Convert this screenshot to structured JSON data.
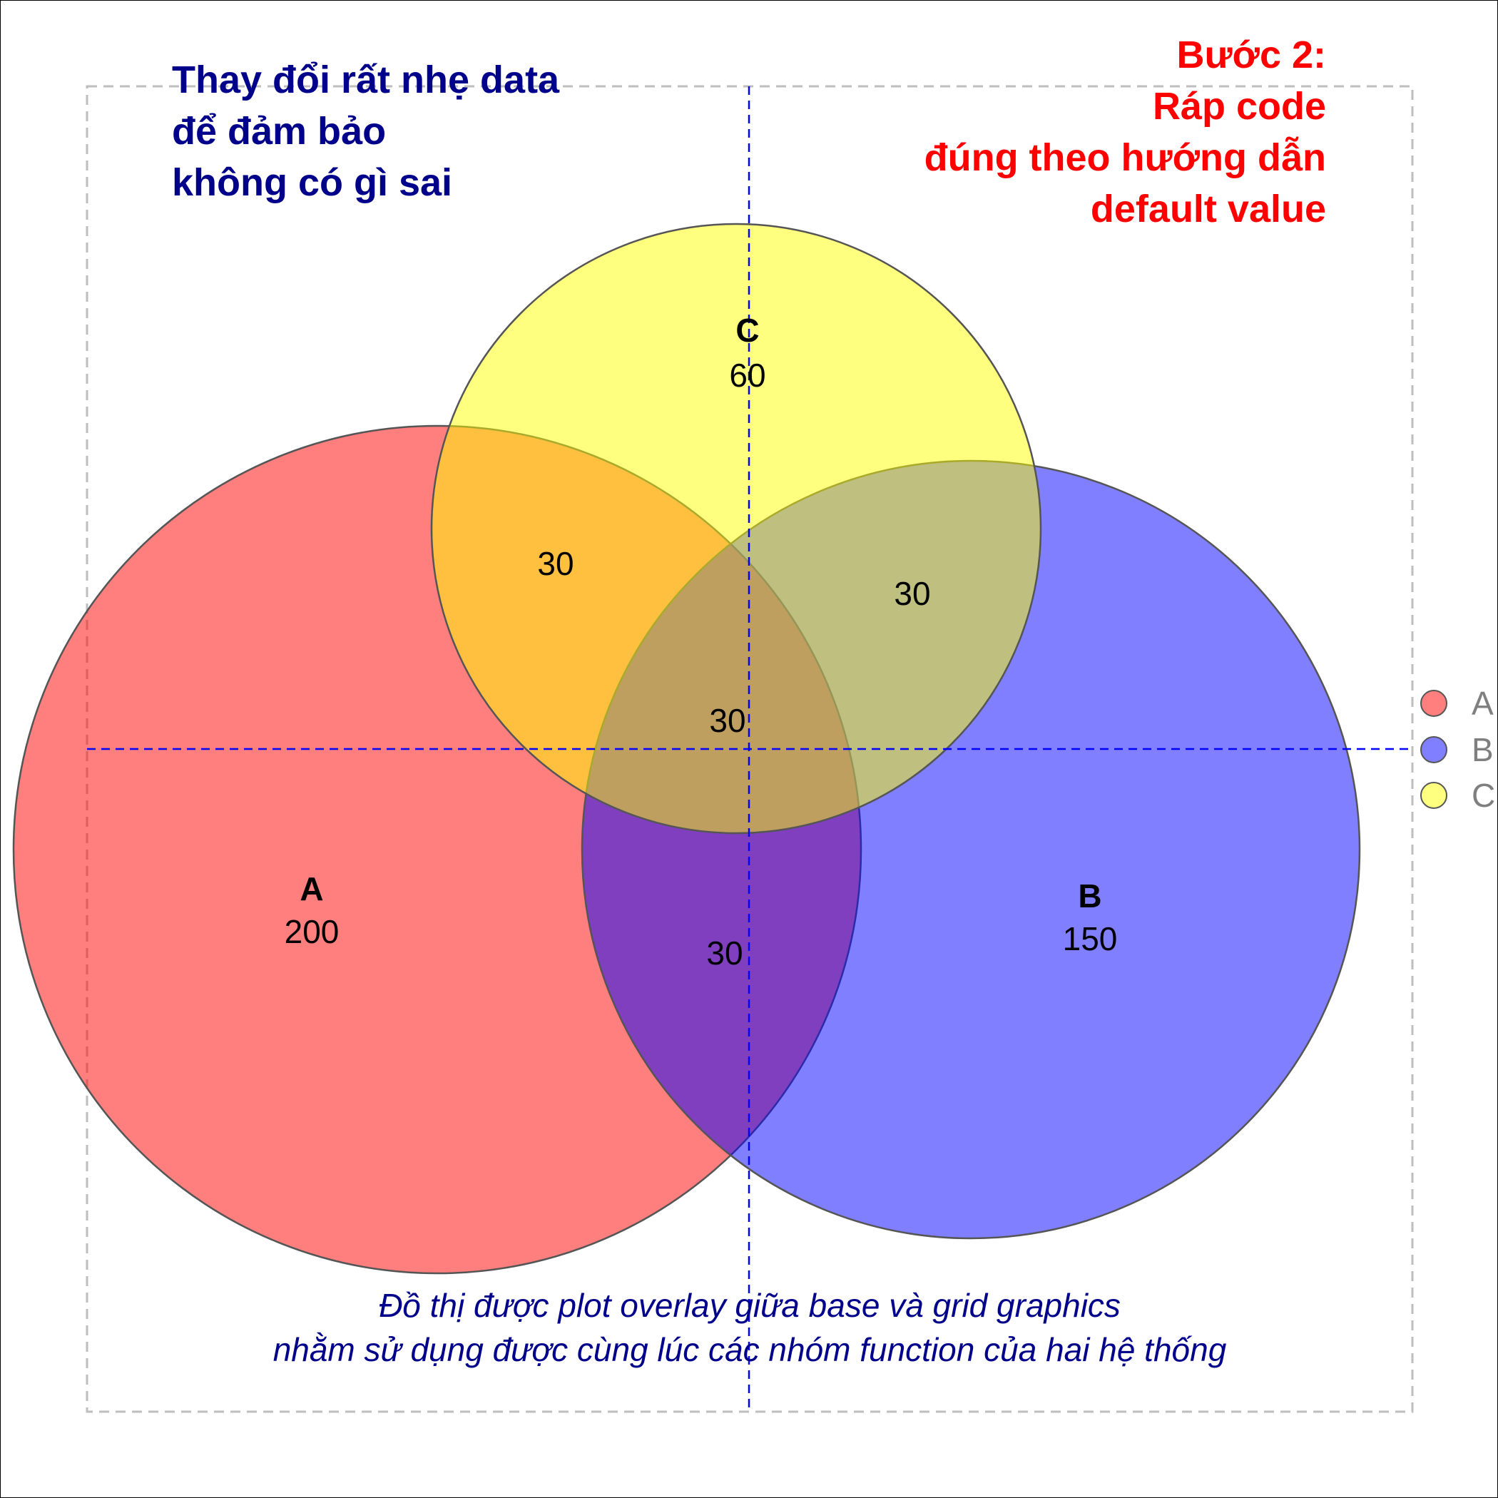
{
  "notes": {
    "left": [
      "Thay đổi rất nhẹ data",
      "để đảm bảo",
      "không có gì sai"
    ],
    "right": [
      "Bước 2:",
      "Ráp code",
      "đúng theo hướng dẫn",
      "default value"
    ]
  },
  "caption": [
    "Đồ thị được plot overlay giữa base và grid graphics",
    "nhằm sử dụng được cùng lúc các nhóm function của hai hệ thống"
  ],
  "venn": {
    "sets": [
      {
        "name": "A",
        "count": "200",
        "color": "#ff0000"
      },
      {
        "name": "B",
        "count": "150",
        "color": "#0000ff"
      },
      {
        "name": "C",
        "count": "60",
        "color": "#ffff00"
      }
    ],
    "intersections": {
      "AC": "30",
      "BC": "30",
      "ABC": "30",
      "AB": "30"
    }
  },
  "legend": [
    {
      "label": "A",
      "color": "#ff7f7f"
    },
    {
      "label": "B",
      "color": "#7f7fff"
    },
    {
      "label": "C",
      "color": "#ffff7f"
    }
  ],
  "colors": {
    "guide_line": "#0000ff",
    "frame": "#bebebe",
    "note_left": "#00008b",
    "note_right": "#ff0000",
    "caption": "#00008b"
  }
}
